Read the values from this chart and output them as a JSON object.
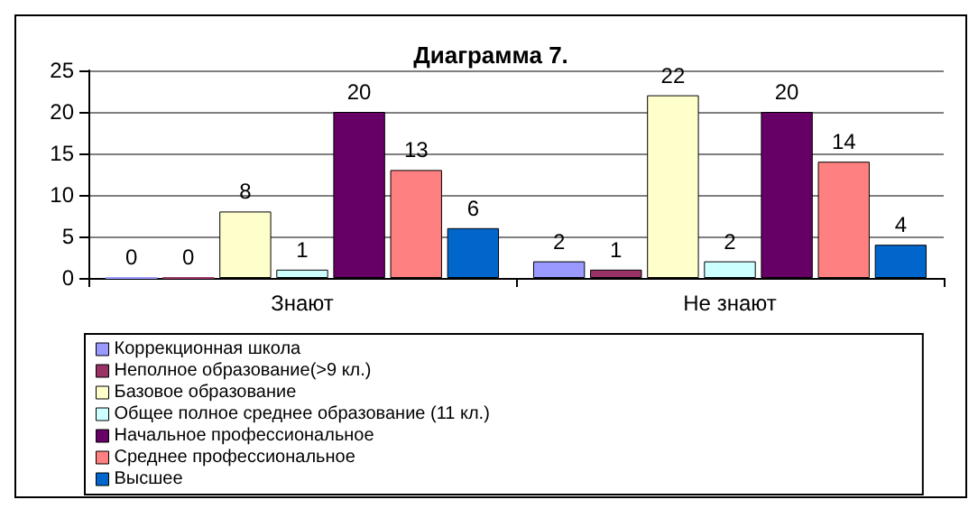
{
  "chart_data": {
    "type": "bar",
    "title": "Диаграмма 7.",
    "categories": [
      "Знают",
      "Не знают"
    ],
    "series": [
      {
        "name": "Коррекционная школа",
        "color": "#9999ff",
        "values": [
          0,
          2
        ]
      },
      {
        "name": "Неполное образование(>9 кл.)",
        "color": "#993366",
        "values": [
          0,
          1
        ]
      },
      {
        "name": "Базовое образование",
        "color": "#ffffcc",
        "values": [
          8,
          22
        ]
      },
      {
        "name": "Общее полное среднее образование (11 кл.)",
        "color": "#ccffff",
        "values": [
          1,
          2
        ]
      },
      {
        "name": "Начальное профессиональное",
        "color": "#660066",
        "values": [
          20,
          20
        ]
      },
      {
        "name": "Среднее профессиональное",
        "color": "#ff8080",
        "values": [
          13,
          14
        ]
      },
      {
        "name": "Высшее",
        "color": "#0066cc",
        "values": [
          6,
          4
        ]
      }
    ],
    "ylim": [
      0,
      25
    ],
    "yticks": [
      0,
      5,
      10,
      15,
      20,
      25
    ],
    "grid": "y",
    "data_labels": true,
    "legend": "bottom"
  }
}
